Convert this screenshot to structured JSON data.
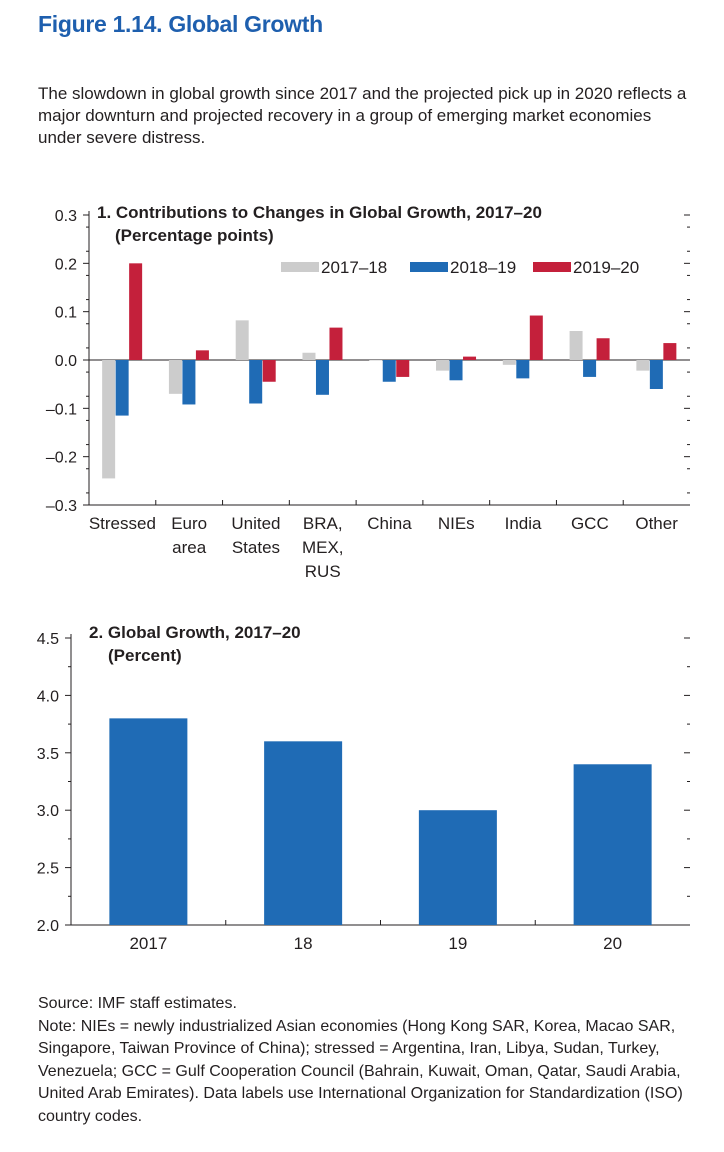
{
  "figure": {
    "title": "Figure 1.14.  Global Growth",
    "subtitle": "The slowdown in global growth since 2017 and the projected pick up in 2020 reflects a major downturn and projected recovery in a group of emerging market economies under severe distress."
  },
  "chart_data": [
    {
      "type": "bar",
      "title": "1. Contributions to Changes in Global Growth, 2017–20",
      "subtitle": "(Percentage points)",
      "categories": [
        "Stressed",
        "Euro area",
        "United States",
        "BRA, MEX, RUS",
        "China",
        "NIEs",
        "India",
        "GCC",
        "Other"
      ],
      "category_lines": [
        [
          "Stressed"
        ],
        [
          "Euro",
          "area"
        ],
        [
          "United",
          "States"
        ],
        [
          "BRA,",
          "MEX,",
          "RUS"
        ],
        [
          "China"
        ],
        [
          "NIEs"
        ],
        [
          "India"
        ],
        [
          "GCC"
        ],
        [
          "Other"
        ]
      ],
      "series": [
        {
          "name": "2017–18",
          "color": "#cccccc",
          "values": [
            -0.245,
            -0.07,
            0.082,
            0.015,
            0.0,
            -0.022,
            -0.01,
            0.06,
            -0.022
          ]
        },
        {
          "name": "2018–19",
          "color": "#1f6bb5",
          "values": [
            -0.115,
            -0.092,
            -0.09,
            -0.072,
            -0.045,
            -0.042,
            -0.038,
            -0.035,
            -0.06
          ]
        },
        {
          "name": "2019–20",
          "color": "#c4203b",
          "values": [
            0.2,
            0.02,
            -0.045,
            0.067,
            -0.035,
            0.007,
            0.092,
            0.045,
            0.035
          ]
        }
      ],
      "ylim": [
        -0.3,
        0.3
      ],
      "yticks": [
        0.3,
        0.2,
        0.1,
        0.0,
        -0.1,
        -0.2,
        -0.3
      ],
      "ytick_labels": [
        "0.3",
        "0.2",
        "0.1",
        "0.0",
        "–0.1",
        "–0.2",
        "–0.3"
      ],
      "legend": "top-right",
      "grid": false
    },
    {
      "type": "bar",
      "title": "2. Global Growth, 2017–20",
      "subtitle": "(Percent)",
      "categories": [
        "2017",
        "18",
        "19",
        "20"
      ],
      "series": [
        {
          "name": "",
          "color": "#1f6bb5",
          "values": [
            3.8,
            3.6,
            3.0,
            3.4
          ]
        }
      ],
      "ylim": [
        2.0,
        4.5
      ],
      "yticks": [
        4.5,
        4.0,
        3.5,
        3.0,
        2.5,
        2.0
      ],
      "ytick_labels": [
        "4.5",
        "4.0",
        "3.5",
        "3.0",
        "2.5",
        "2.0"
      ],
      "grid": false
    }
  ],
  "notes": {
    "source": "Source: IMF staff estimates.",
    "note": "Note: NIEs = newly industrialized Asian economies (Hong Kong SAR, Korea, Macao SAR, Singapore, Taiwan Province of China); stressed = Argentina, Iran, Libya, Sudan, Turkey, Venezuela; GCC = Gulf Cooperation Council (Bahrain, Kuwait, Oman, Qatar, Saudi Arabia, United Arab Emirates). Data labels use International Organization for Standardization (ISO) country codes."
  }
}
